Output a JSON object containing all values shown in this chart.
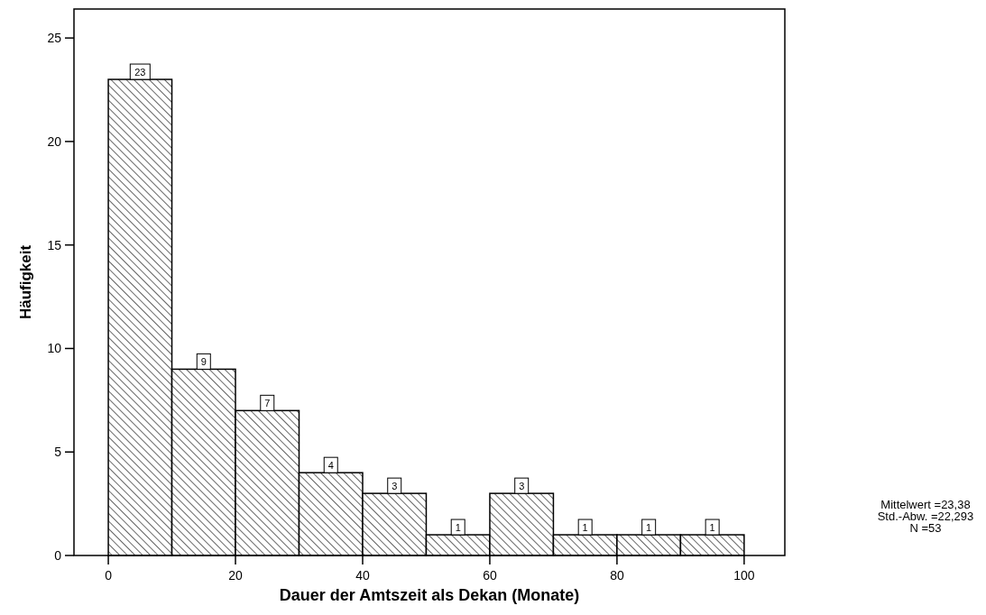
{
  "chart_data": {
    "type": "histogram",
    "xlabel": "Dauer der Amtszeit als Dekan (Monate)",
    "ylabel": "Häufigkeit",
    "bins": [
      0,
      10,
      20,
      30,
      40,
      50,
      60,
      70,
      80,
      90,
      100
    ],
    "values": [
      23,
      9,
      7,
      4,
      3,
      1,
      3,
      1,
      1,
      1
    ],
    "color": "#000000",
    "data_labels": true,
    "xlim": [
      -5.4,
      106.4
    ],
    "xticks": [
      0,
      20,
      40,
      60,
      80,
      100
    ],
    "ylim": [
      0,
      26.4
    ],
    "yticks": [
      0,
      5,
      10,
      15,
      20,
      25
    ],
    "grid": false,
    "annotations": [
      "Mittelwert =23,38",
      "Std.-Abw. =22,293",
      "N =53"
    ]
  }
}
